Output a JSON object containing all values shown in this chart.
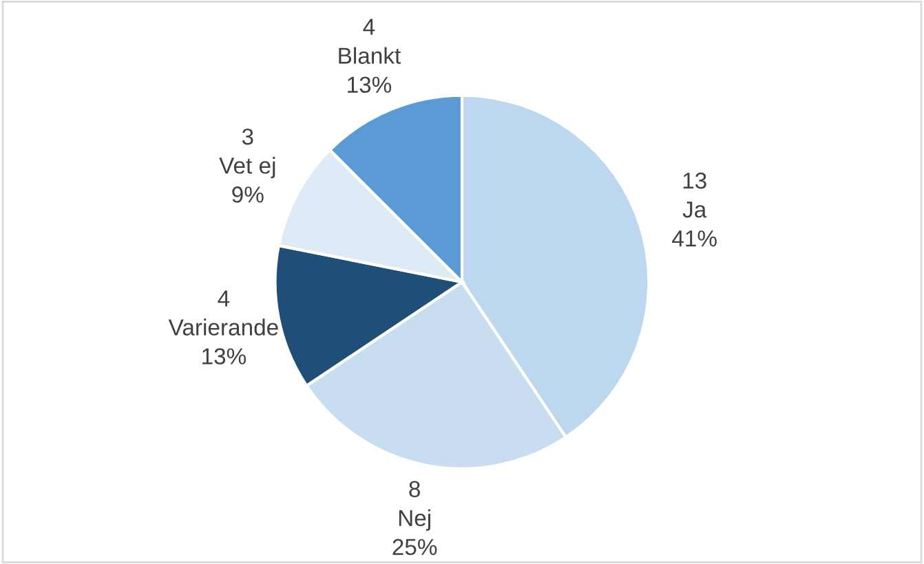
{
  "chart_data": {
    "type": "pie",
    "categories": [
      "Ja",
      "Nej",
      "Varierande",
      "Vet ej",
      "Blankt"
    ],
    "values": [
      13,
      8,
      4,
      3,
      4
    ],
    "colors": [
      "#bdd7ee",
      "#c9ddf0",
      "#1f4e79",
      "#deebf7",
      "#5b9bd5"
    ],
    "data_labels": true,
    "annotations": [
      "41%",
      "25%",
      "13%",
      "9%",
      "13%"
    ]
  }
}
